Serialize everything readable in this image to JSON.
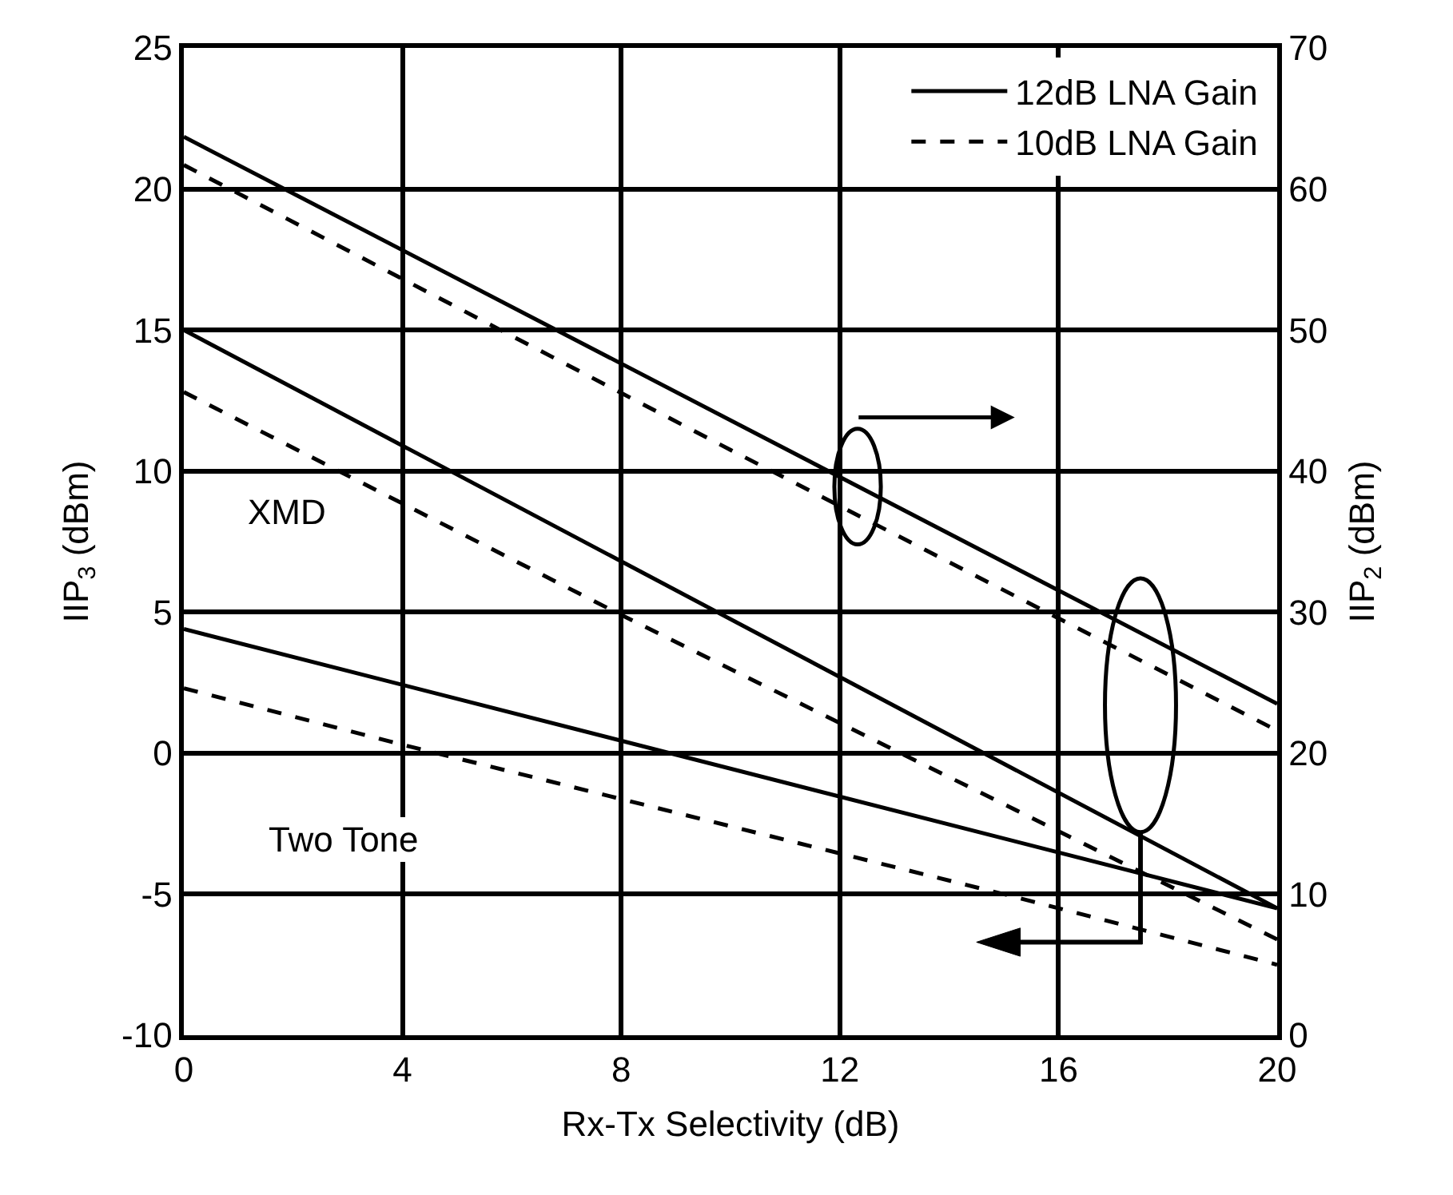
{
  "chart_data": {
    "type": "line",
    "xlabel": "Rx-Tx Selectivity (dB)",
    "ylabel": "IIP$_{3}$ (dBm)",
    "y2label": "IIP$_{2}$ (dBm)",
    "series": [
      {
        "name": "12dB LNA Gain",
        "color": "#000000",
        "line_style": "solid",
        "axis": "y2",
        "x": [
          0,
          20
        ],
        "values": [
          63.7,
          23.5
        ]
      },
      {
        "name": "10dB LNA Gain",
        "color": "#000000",
        "line_style": "dashed",
        "axis": "y2",
        "x": [
          0,
          10,
          20
        ],
        "values": [
          61.7,
          41.5,
          21.6
        ]
      },
      {
        "color": "#000000",
        "line_style": "solid",
        "x": [
          0,
          20
        ],
        "values": [
          15,
          -5.5
        ]
      },
      {
        "color": "#000000",
        "line_style": "dashed",
        "x": [
          0,
          8,
          20
        ],
        "values": [
          12.8,
          4.9,
          -6.6
        ]
      },
      {
        "color": "#000000",
        "line_style": "solid",
        "x": [
          0,
          20
        ],
        "values": [
          4.4,
          -5.5
        ]
      },
      {
        "color": "#000000",
        "line_style": "dashed",
        "x": [
          0,
          4,
          15,
          20
        ],
        "values": [
          2.3,
          0.3,
          -5,
          -7.5
        ]
      }
    ],
    "xlim": [
      0,
      20
    ],
    "xticks": [
      0,
      4,
      8,
      12,
      16,
      20
    ],
    "ylim": [
      -10,
      25
    ],
    "yticks": [
      -10,
      -5,
      0,
      5,
      10,
      15,
      20,
      25
    ],
    "y2lim": [
      0,
      70
    ],
    "y2ticks": [
      0,
      10,
      20,
      30,
      40,
      50,
      60,
      70
    ],
    "annotations": [
      "XMD",
      "Two Tone"
    ],
    "grid": true,
    "legend": "top right",
    "marker": "none"
  }
}
